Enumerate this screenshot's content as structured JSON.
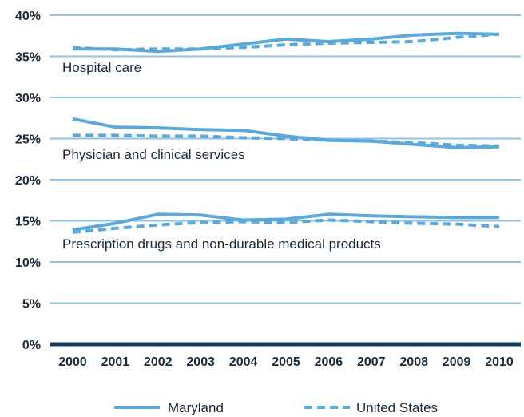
{
  "chart_data": {
    "type": "line",
    "x": [
      "2000",
      "2001",
      "2002",
      "2003",
      "2004",
      "2005",
      "2006",
      "2007",
      "2008",
      "2009",
      "2010"
    ],
    "ylim": [
      0,
      40
    ],
    "yticks": [
      "0%",
      "5%",
      "10%",
      "15%",
      "20%",
      "25%",
      "30%",
      "35%",
      "40%"
    ],
    "grid": true,
    "legend_position": "bottom",
    "legend": {
      "solid": "Maryland",
      "dashed": "United States"
    },
    "colors": {
      "line": "#5aa9d9",
      "grid": "#8ec3e6",
      "axis": "#0f3d5a"
    },
    "groups": [
      {
        "label": "Hospital care",
        "maryland": [
          35.9,
          35.9,
          35.6,
          35.9,
          36.5,
          37.1,
          36.8,
          37.1,
          37.6,
          37.8,
          37.7
        ],
        "united_states": [
          36.1,
          35.8,
          35.9,
          35.9,
          36.1,
          36.4,
          36.6,
          36.7,
          36.8,
          37.3,
          37.7
        ]
      },
      {
        "label": "Physician and clinical services",
        "maryland": [
          27.4,
          26.4,
          26.3,
          26.1,
          26.0,
          25.3,
          24.8,
          24.7,
          24.3,
          23.9,
          24.0
        ],
        "united_states": [
          25.4,
          25.4,
          25.3,
          25.3,
          25.1,
          25.0,
          24.8,
          24.7,
          24.5,
          24.2,
          24.1
        ]
      },
      {
        "label": "Prescription drugs and non-durable medical products",
        "maryland": [
          13.9,
          14.7,
          15.8,
          15.7,
          15.1,
          15.2,
          15.8,
          15.6,
          15.5,
          15.4,
          15.4
        ],
        "united_states": [
          13.6,
          14.1,
          14.5,
          14.8,
          14.9,
          14.8,
          15.1,
          14.9,
          14.7,
          14.6,
          14.3
        ]
      }
    ]
  }
}
